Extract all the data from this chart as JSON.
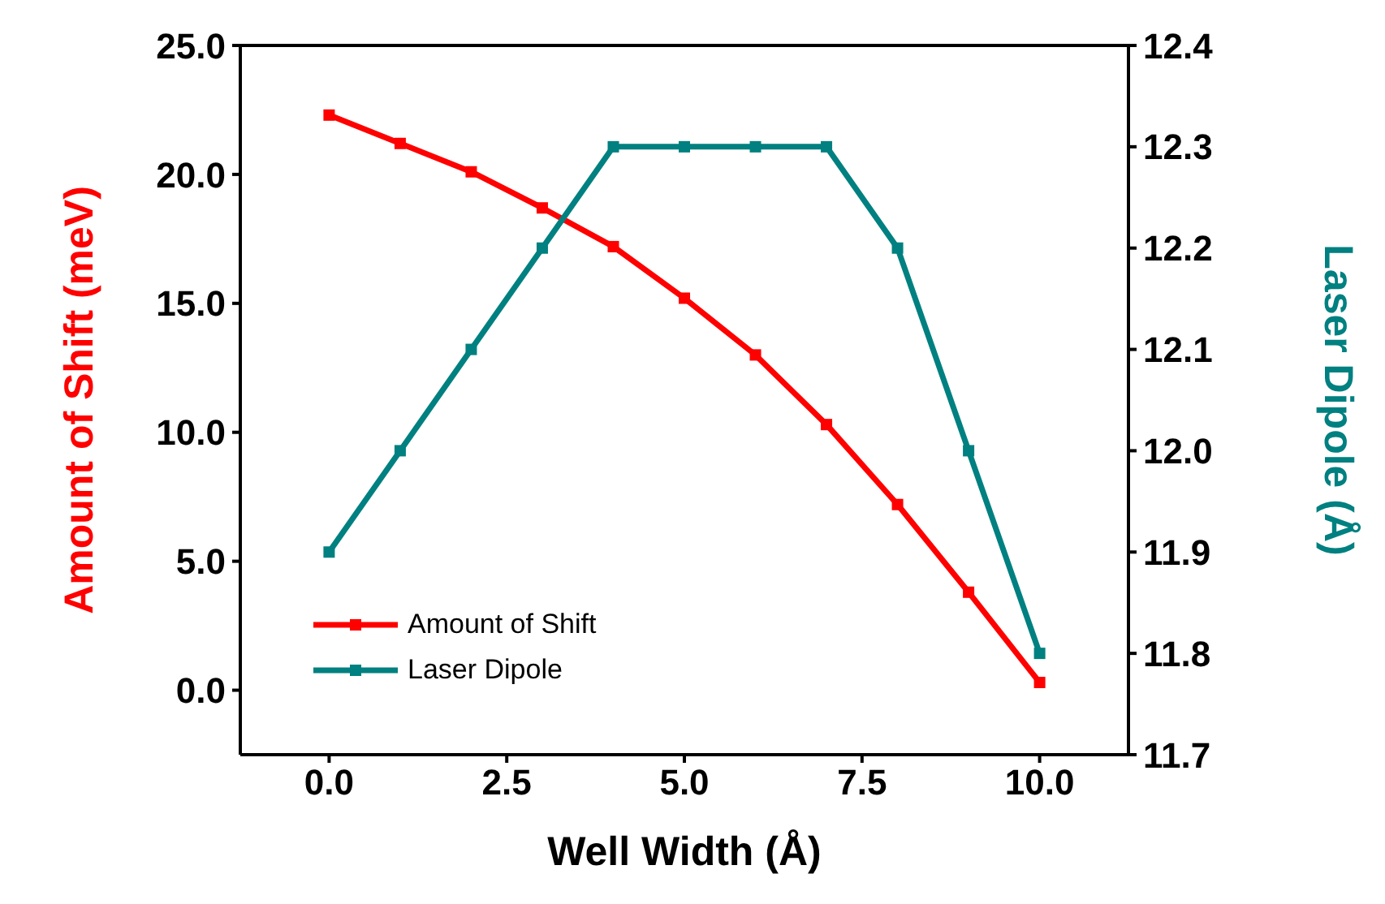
{
  "chart_data": {
    "type": "line",
    "xlabel": "Well Width (Å)",
    "ylabel": "Amount of Shift (meV)",
    "y2label": "Laser Dipole (Å)",
    "x": [
      0,
      1,
      2,
      3,
      4,
      5,
      6,
      7,
      8,
      9,
      10
    ],
    "series": [
      {
        "name": "Amount of Shift",
        "color": "#ff0000",
        "values": [
          22.3,
          21.2,
          20.1,
          18.7,
          17.2,
          15.2,
          13.0,
          10.3,
          7.2,
          3.8,
          0.3
        ]
      },
      {
        "name": "Laser Dipole",
        "color": "#008080",
        "axis": "y2",
        "values": [
          11.9,
          12.0,
          12.1,
          12.2,
          12.3,
          12.3,
          12.3,
          12.3,
          12.2,
          12.0,
          11.8
        ]
      }
    ],
    "xlim": [
      -1.25,
      11.25
    ],
    "xticks": [
      {
        "value": 0,
        "label": "0.0"
      },
      {
        "value": 2.5,
        "label": "2.5"
      },
      {
        "value": 5,
        "label": "5.0"
      },
      {
        "value": 7.5,
        "label": "7.5"
      },
      {
        "value": 10,
        "label": "10.0"
      }
    ],
    "ylim": [
      -2.5,
      25
    ],
    "yticks": [
      {
        "value": 0,
        "label": "0.0"
      },
      {
        "value": 5,
        "label": "5.0"
      },
      {
        "value": 10,
        "label": "10.0"
      },
      {
        "value": 15,
        "label": "15.0"
      },
      {
        "value": 20,
        "label": "20.0"
      },
      {
        "value": 25,
        "label": "25.0"
      }
    ],
    "y2lim": [
      11.7,
      12.4
    ],
    "y2ticks": [
      11.7,
      11.8,
      11.9,
      {
        "value": 12,
        "label": "12.0"
      },
      12.1,
      12.2,
      12.3,
      12.4
    ],
    "legend": "bottom left",
    "marker": "square",
    "line_style": "solid",
    "grid": false
  }
}
